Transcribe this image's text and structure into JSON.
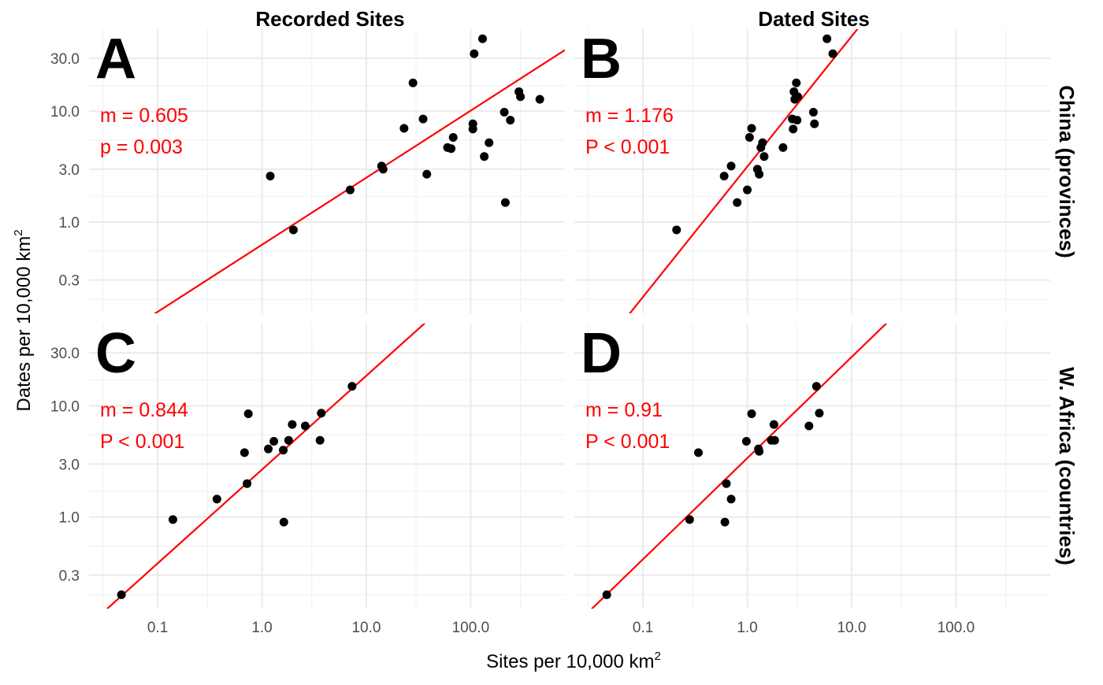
{
  "chart_data": {
    "type": "scatter",
    "scale": "log10",
    "grid": true,
    "xlabel": "Sites per 10,000 km",
    "xlabel_sup": "2",
    "ylabel": "Dates per 10,000 km",
    "ylabel_sup": "2",
    "column_titles": [
      "Recorded Sites",
      "Dated Sites"
    ],
    "row_titles": [
      "China (provinces)",
      "W. Africa (countries)"
    ],
    "x_ticks": [
      "0.1",
      "1.0",
      "10.0",
      "100.0"
    ],
    "x_tick_values": [
      0.1,
      1,
      10,
      100
    ],
    "y_ticks": [
      "0.3",
      "1.0",
      "3.0",
      "10.0",
      "30.0"
    ],
    "y_tick_values": [
      0.3,
      1,
      3,
      10,
      30
    ],
    "xlim": [
      0.022,
      800
    ],
    "ylim": [
      0.15,
      55
    ],
    "panels": [
      {
        "letter": "A",
        "row": 0,
        "col": 0,
        "annotation": [
          "m = 0.605",
          "p = 0.003"
        ],
        "fit": {
          "slope": 0.605,
          "intercept": -0.205
        },
        "points": [
          [
            1.2,
            2.6
          ],
          [
            2.0,
            0.85
          ],
          [
            7.0,
            1.95
          ],
          [
            14.0,
            3.2
          ],
          [
            14.5,
            3.0
          ],
          [
            23.0,
            7.0
          ],
          [
            28.0,
            18.0
          ],
          [
            35.0,
            8.5
          ],
          [
            38.0,
            2.7
          ],
          [
            60.0,
            4.7
          ],
          [
            65.0,
            4.6
          ],
          [
            68.0,
            5.8
          ],
          [
            105.0,
            7.7
          ],
          [
            105.0,
            6.9
          ],
          [
            108.0,
            33.0
          ],
          [
            130.0,
            45.0
          ],
          [
            135.0,
            3.9
          ],
          [
            150.0,
            5.2
          ],
          [
            210.0,
            9.8
          ],
          [
            215.0,
            1.5
          ],
          [
            240.0,
            8.3
          ],
          [
            290.0,
            15.0
          ],
          [
            300.0,
            13.5
          ],
          [
            460.0,
            12.8
          ]
        ]
      },
      {
        "letter": "B",
        "row": 0,
        "col": 1,
        "annotation": [
          "m = 1.176",
          "P < 0.001"
        ],
        "fit": {
          "slope": 1.176,
          "intercept": 0.5
        },
        "points": [
          [
            0.21,
            0.85
          ],
          [
            0.6,
            2.6
          ],
          [
            0.7,
            3.2
          ],
          [
            0.8,
            1.5
          ],
          [
            1.0,
            1.95
          ],
          [
            1.05,
            5.8
          ],
          [
            1.1,
            7.0
          ],
          [
            1.25,
            3.0
          ],
          [
            1.3,
            2.7
          ],
          [
            1.35,
            4.7
          ],
          [
            1.4,
            5.2
          ],
          [
            1.45,
            3.9
          ],
          [
            2.2,
            4.7
          ],
          [
            2.7,
            8.5
          ],
          [
            2.75,
            6.9
          ],
          [
            2.8,
            15.0
          ],
          [
            2.85,
            12.8
          ],
          [
            2.95,
            18.0
          ],
          [
            3.0,
            8.3
          ],
          [
            3.05,
            13.5
          ],
          [
            4.3,
            9.8
          ],
          [
            4.4,
            7.7
          ],
          [
            5.8,
            45.0
          ],
          [
            6.6,
            33.0
          ]
        ]
      },
      {
        "letter": "C",
        "row": 1,
        "col": 0,
        "annotation": [
          "m = 0.844",
          "P < 0.001"
        ],
        "fit": {
          "slope": 0.844,
          "intercept": 0.427
        },
        "points": [
          [
            0.045,
            0.2
          ],
          [
            0.14,
            0.95
          ],
          [
            0.37,
            1.45
          ],
          [
            0.68,
            3.8
          ],
          [
            0.72,
            2.0
          ],
          [
            0.74,
            8.5
          ],
          [
            1.15,
            4.1
          ],
          [
            1.3,
            4.8
          ],
          [
            1.6,
            4.0
          ],
          [
            1.62,
            0.9
          ],
          [
            1.8,
            4.9
          ],
          [
            1.95,
            6.8
          ],
          [
            2.6,
            6.6
          ],
          [
            3.6,
            4.9
          ],
          [
            3.7,
            8.6
          ],
          [
            7.3,
            15.0
          ]
        ]
      },
      {
        "letter": "D",
        "row": 1,
        "col": 1,
        "annotation": [
          "m = 0.91",
          "P < 0.001"
        ],
        "fit": {
          "slope": 0.91,
          "intercept": 0.53
        },
        "points": [
          [
            0.045,
            0.2
          ],
          [
            0.28,
            0.95
          ],
          [
            0.34,
            3.8
          ],
          [
            0.61,
            0.9
          ],
          [
            0.63,
            2.0
          ],
          [
            0.7,
            1.45
          ],
          [
            0.98,
            4.8
          ],
          [
            1.1,
            8.5
          ],
          [
            1.28,
            4.1
          ],
          [
            1.3,
            3.9
          ],
          [
            1.7,
            4.9
          ],
          [
            1.8,
            6.8
          ],
          [
            1.83,
            4.9
          ],
          [
            3.9,
            6.6
          ],
          [
            4.6,
            15.0
          ],
          [
            4.9,
            8.6
          ]
        ]
      }
    ]
  }
}
